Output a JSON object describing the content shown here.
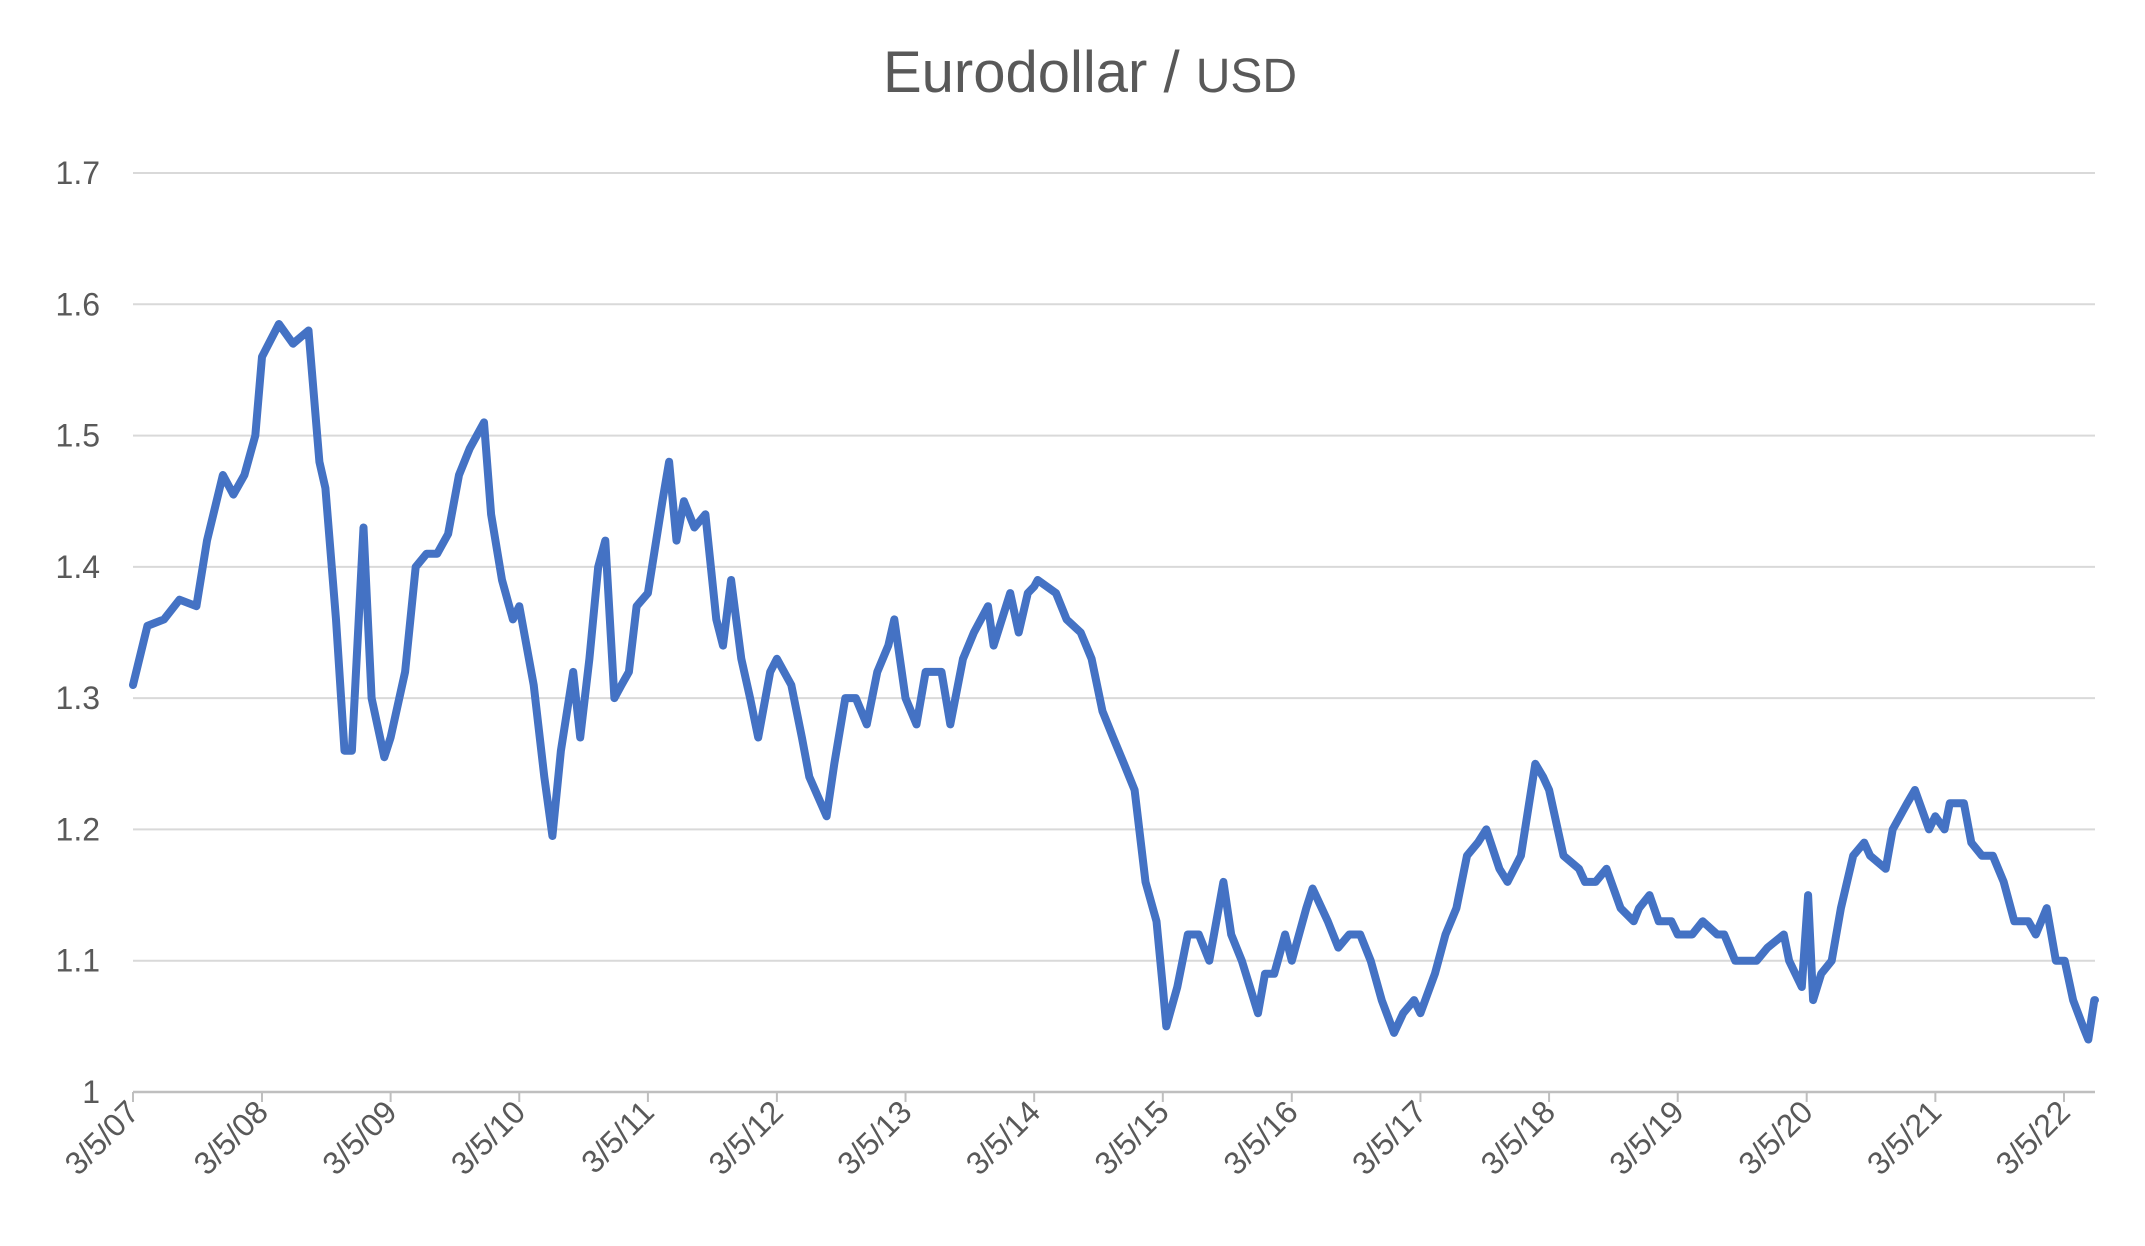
{
  "chart_data": {
    "type": "line",
    "title": "Eurodollar / ",
    "title_unit": "USD",
    "xlabel": "",
    "ylabel": "",
    "x_tick_labels": [
      "3/5/07",
      "3/5/08",
      "3/5/09",
      "3/5/10",
      "3/5/11",
      "3/5/12",
      "3/5/13",
      "3/5/14",
      "3/5/15",
      "3/5/16",
      "3/5/17",
      "3/5/18",
      "3/5/19",
      "3/5/20",
      "3/5/21",
      "3/5/22"
    ],
    "x_range": [
      "3/5/07",
      "6/1/22"
    ],
    "y_ticks": [
      "1",
      "1.1",
      "1.2",
      "1.3",
      "1.4",
      "1.5",
      "1.6",
      "1.7"
    ],
    "ylim": [
      1.0,
      1.7
    ],
    "grid": "horizontal",
    "legend": "none",
    "colors": {
      "line": "#4472C4",
      "grid": "#D9D9D9",
      "axis": "#BFBFBF",
      "text": "#595959"
    },
    "series": [
      {
        "x": [
          "3/5/07",
          "4/15/07",
          "6/1/07",
          "7/15/07",
          "9/1/07",
          "10/1/07",
          "11/15/07",
          "12/15/07",
          "1/15/08",
          "2/15/08",
          "3/5/08",
          "4/22/08",
          "6/1/08",
          "7/15/08",
          "8/15/08",
          "9/1/08",
          "10/1/08",
          "10/25/08",
          "11/15/08",
          "12/18/08",
          "1/10/09",
          "2/15/09",
          "3/5/09",
          "4/15/09",
          "5/15/09",
          "6/15/09",
          "7/15/09",
          "8/15/09",
          "9/15/09",
          "10/15/09",
          "11/25/09",
          "12/15/09",
          "1/15/10",
          "2/15/10",
          "3/5/10",
          "4/15/10",
          "5/15/10",
          "6/7/10",
          "7/1/10",
          "8/5/10",
          "8/25/10",
          "9/20/10",
          "10/15/10",
          "11/4/10",
          "11/30/10",
          "12/20/10",
          "1/10/11",
          "2/1/11",
          "3/5/11",
          "4/15/11",
          "5/4/11",
          "5/25/11",
          "6/15/11",
          "7/15/11",
          "8/15/11",
          "9/15/11",
          "10/4/11",
          "10/27/11",
          "11/25/11",
          "12/20/11",
          "1/12/12",
          "2/15/12",
          "3/5/12",
          "4/15/12",
          "5/15/12",
          "6/5/12",
          "7/24/12",
          "8/15/12",
          "9/15/12",
          "10/15/12",
          "11/15/12",
          "12/15/12",
          "1/15/13",
          "2/1/13",
          "3/5/13",
          "4/5/13",
          "5/1/13",
          "6/15/13",
          "7/10/13",
          "8/15/13",
          "9/15/13",
          "10/25/13",
          "11/10/13",
          "12/27/13",
          "1/20/14",
          "2/15/14",
          "3/5/14",
          "3/15/14",
          "5/6/14",
          "6/5/14",
          "7/15/14",
          "8/15/14",
          "9/15/14",
          "10/15/14",
          "11/15/14",
          "12/15/14",
          "1/15/15",
          "2/15/15",
          "3/5/15",
          "3/15/15",
          "4/15/15",
          "5/15/15",
          "6/15/15",
          "7/15/15",
          "8/24/15",
          "9/15/15",
          "10/15/15",
          "11/30/15",
          "12/20/15",
          "1/15/16",
          "2/15/16",
          "3/5/16",
          "4/15/16",
          "5/3/16",
          "6/15/16",
          "7/15/16",
          "8/15/16",
          "9/15/16",
          "10/15/16",
          "11/15/16",
          "12/20/16",
          "1/15/17",
          "2/15/17",
          "3/5/17",
          "4/15/17",
          "5/15/17",
          "6/15/17",
          "7/15/17",
          "8/15/17",
          "9/8/17",
          "10/15/17",
          "11/7/17",
          "12/15/17",
          "1/25/18",
          "2/16/18",
          "3/5/18",
          "4/15/18",
          "5/29/18",
          "6/15/18",
          "7/15/18",
          "8/15/18",
          "9/24/18",
          "10/31/18",
          "11/15/18",
          "12/15/18",
          "1/10/19",
          "2/15/19",
          "3/5/19",
          "4/15/19",
          "5/15/19",
          "6/25/19",
          "7/15/19",
          "8/15/19",
          "9/30/19",
          "10/15/19",
          "11/15/19",
          "12/31/19",
          "1/15/20",
          "2/20/20",
          "3/9/20",
          "3/23/20",
          "4/15/20",
          "5/15/20",
          "6/10/20",
          "7/15/20",
          "8/15/20",
          "9/1/20",
          "10/15/20",
          "11/4/20",
          "12/15/20",
          "1/6/21",
          "2/15/21",
          "3/5/21",
          "3/31/21",
          "4/15/21",
          "5/25/21",
          "6/15/21",
          "7/15/21",
          "8/15/21",
          "9/15/21",
          "10/15/21",
          "11/24/21",
          "12/15/21",
          "1/15/22",
          "2/10/22",
          "3/7/22",
          "3/31/22",
          "4/28/22",
          "5/13/22",
          "5/30/22",
          "6/1/22"
        ],
        "values": [
          1.31,
          1.355,
          1.36,
          1.375,
          1.37,
          1.42,
          1.47,
          1.455,
          1.47,
          1.5,
          1.56,
          1.585,
          1.57,
          1.58,
          1.48,
          1.46,
          1.36,
          1.26,
          1.26,
          1.43,
          1.3,
          1.255,
          1.27,
          1.32,
          1.4,
          1.41,
          1.41,
          1.425,
          1.47,
          1.49,
          1.51,
          1.44,
          1.39,
          1.36,
          1.37,
          1.31,
          1.24,
          1.195,
          1.26,
          1.32,
          1.27,
          1.33,
          1.4,
          1.42,
          1.3,
          1.31,
          1.32,
          1.37,
          1.38,
          1.45,
          1.48,
          1.42,
          1.45,
          1.43,
          1.44,
          1.36,
          1.34,
          1.39,
          1.33,
          1.3,
          1.27,
          1.32,
          1.33,
          1.31,
          1.27,
          1.24,
          1.21,
          1.25,
          1.3,
          1.3,
          1.28,
          1.32,
          1.34,
          1.36,
          1.3,
          1.28,
          1.32,
          1.32,
          1.28,
          1.33,
          1.35,
          1.37,
          1.34,
          1.38,
          1.35,
          1.38,
          1.385,
          1.39,
          1.38,
          1.36,
          1.35,
          1.33,
          1.29,
          1.27,
          1.25,
          1.23,
          1.16,
          1.13,
          1.08,
          1.05,
          1.08,
          1.12,
          1.12,
          1.1,
          1.16,
          1.12,
          1.1,
          1.06,
          1.09,
          1.09,
          1.12,
          1.1,
          1.14,
          1.155,
          1.13,
          1.11,
          1.12,
          1.12,
          1.1,
          1.07,
          1.045,
          1.06,
          1.07,
          1.06,
          1.09,
          1.12,
          1.14,
          1.18,
          1.19,
          1.2,
          1.17,
          1.16,
          1.18,
          1.25,
          1.24,
          1.23,
          1.18,
          1.17,
          1.16,
          1.16,
          1.17,
          1.14,
          1.13,
          1.14,
          1.15,
          1.13,
          1.13,
          1.12,
          1.12,
          1.13,
          1.12,
          1.12,
          1.1,
          1.1,
          1.1,
          1.11,
          1.12,
          1.1,
          1.08,
          1.15,
          1.07,
          1.09,
          1.1,
          1.14,
          1.18,
          1.19,
          1.18,
          1.17,
          1.2,
          1.22,
          1.23,
          1.2,
          1.21,
          1.2,
          1.22,
          1.22,
          1.19,
          1.18,
          1.18,
          1.16,
          1.13,
          1.13,
          1.12,
          1.14,
          1.1,
          1.1,
          1.07,
          1.05,
          1.04,
          1.07,
          1.07
        ]
      }
    ]
  }
}
